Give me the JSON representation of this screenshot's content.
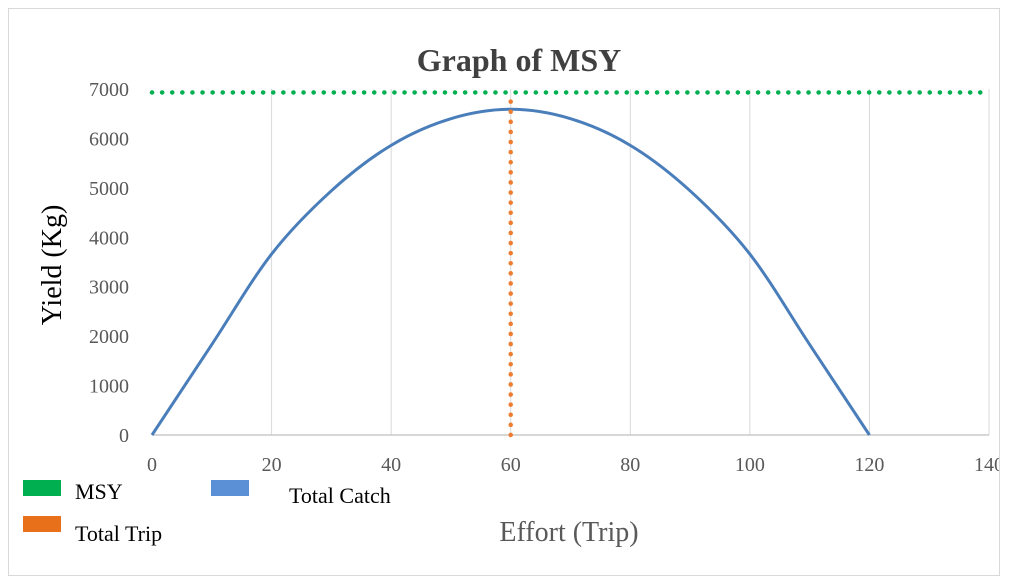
{
  "chart_data": {
    "type": "line",
    "title": "Graph of MSY",
    "xlabel": "Effort (Trip)",
    "ylabel": "Yield (Kg)",
    "xlim": [
      0,
      140
    ],
    "ylim": [
      0,
      7000
    ],
    "x_ticks": [
      "0",
      "20",
      "40",
      "60",
      "80",
      "100",
      "120",
      "140"
    ],
    "y_ticks": [
      "0",
      "1000",
      "2000",
      "3000",
      "4000",
      "5000",
      "6000",
      "7000"
    ],
    "grid": "vertical",
    "legend_position": "bottom-left",
    "series": [
      {
        "name": "MSY",
        "style": "dotted",
        "color": "#00b050",
        "x": [
          0,
          140
        ],
        "y": [
          6930,
          6930
        ]
      },
      {
        "name": "Total Catch",
        "style": "solid",
        "color": "#4a7ebb",
        "x": [
          0,
          10,
          20,
          30,
          40,
          50,
          60,
          70,
          80,
          90,
          100,
          110,
          120
        ],
        "y": [
          0,
          1830,
          3660,
          4940,
          5860,
          6400,
          6590,
          6400,
          5860,
          4940,
          3660,
          1830,
          0
        ]
      },
      {
        "name": "Total Trip",
        "style": "dotted",
        "color": "#ed7d31",
        "x": [
          60,
          60
        ],
        "y": [
          0,
          6930
        ]
      }
    ]
  }
}
